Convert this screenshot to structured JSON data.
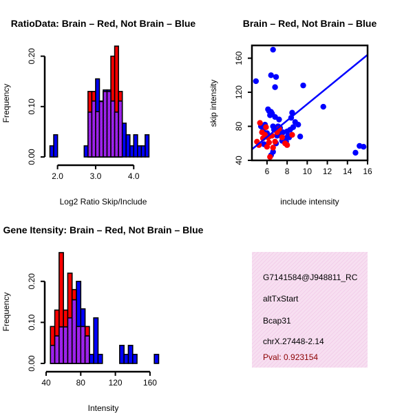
{
  "colors": {
    "red": "#ff0000",
    "blue": "#0000ff",
    "purple": "#a020f0",
    "info_bg": "#f5d3ec",
    "pval": "#8b0000"
  },
  "chart_data": [
    {
      "type": "bar",
      "title": "RatioData: Brain – Red, Not Brain – Blue",
      "xlabel": "Log2 Ratio Skip/Include",
      "ylabel": "Frequency",
      "xlim": [
        1.7,
        4.7
      ],
      "ylim": [
        0,
        0.22
      ],
      "xticks": [
        2.0,
        3.0,
        4.0
      ],
      "xtick_labels": [
        "2.0",
        "3.0",
        "4.0"
      ],
      "yticks": [
        0,
        0.1,
        0.2
      ],
      "ytick_labels": [
        "0.00",
        "0.10",
        "0.20"
      ],
      "bin_width": 0.1,
      "series": [
        {
          "name": "Brain",
          "color": "red",
          "bins": [
            {
              "x0": 2.8,
              "value": 0.13
            },
            {
              "x0": 2.9,
              "value": 0.13
            },
            {
              "x0": 3.0,
              "value": 0.09
            },
            {
              "x0": 3.1,
              "value": 0.11
            },
            {
              "x0": 3.2,
              "value": 0.13
            },
            {
              "x0": 3.3,
              "value": 0.13
            },
            {
              "x0": 3.4,
              "value": 0.2
            },
            {
              "x0": 3.5,
              "value": 0.22
            },
            {
              "x0": 3.6,
              "value": 0.13
            }
          ]
        },
        {
          "name": "Not Brain",
          "color": "blue",
          "bins": [
            {
              "x0": 1.8,
              "value": 0.022
            },
            {
              "x0": 1.9,
              "value": 0.044
            },
            {
              "x0": 2.7,
              "value": 0.022
            },
            {
              "x0": 2.8,
              "value": 0.089
            },
            {
              "x0": 2.9,
              "value": 0.111
            },
            {
              "x0": 3.0,
              "value": 0.155
            },
            {
              "x0": 3.1,
              "value": 0.111
            },
            {
              "x0": 3.2,
              "value": 0.133
            },
            {
              "x0": 3.3,
              "value": 0.133
            },
            {
              "x0": 3.4,
              "value": 0.111
            },
            {
              "x0": 3.5,
              "value": 0.089
            },
            {
              "x0": 3.6,
              "value": 0.111
            },
            {
              "x0": 3.7,
              "value": 0.067
            },
            {
              "x0": 3.8,
              "value": 0.044
            },
            {
              "x0": 3.9,
              "value": 0.022
            },
            {
              "x0": 4.0,
              "value": 0.044
            },
            {
              "x0": 4.1,
              "value": 0.022
            },
            {
              "x0": 4.2,
              "value": 0.022
            },
            {
              "x0": 4.3,
              "value": 0.044
            }
          ]
        }
      ]
    },
    {
      "type": "scatter",
      "title": "Brain – Red, Not Brain – Blue",
      "xlabel": "include intensity",
      "ylabel": "skip intensity",
      "xlim": [
        4.5,
        16
      ],
      "ylim": [
        40,
        175
      ],
      "xticks": [
        6,
        8,
        10,
        12,
        14,
        16
      ],
      "xtick_labels": [
        "6",
        "8",
        "10",
        "12",
        "14",
        "16"
      ],
      "yticks": [
        40,
        80,
        120,
        160
      ],
      "ytick_labels": [
        "40",
        "80",
        "120",
        "160"
      ],
      "fit_line": {
        "color": "blue",
        "x": [
          4.5,
          16
        ],
        "y": [
          53,
          164
        ]
      },
      "series": [
        {
          "name": "Brain",
          "color": "red",
          "points": [
            [
              5.0,
              62
            ],
            [
              5.2,
              58
            ],
            [
              5.3,
              84
            ],
            [
              5.5,
              73
            ],
            [
              5.6,
              66
            ],
            [
              5.8,
              70
            ],
            [
              5.9,
              79
            ],
            [
              6.0,
              56
            ],
            [
              6.1,
              67
            ],
            [
              6.2,
              61
            ],
            [
              6.3,
              44
            ],
            [
              6.5,
              69
            ],
            [
              6.6,
              55
            ],
            [
              6.8,
              62
            ],
            [
              7.0,
              73
            ],
            [
              7.2,
              77
            ],
            [
              7.5,
              67
            ],
            [
              7.8,
              60
            ],
            [
              8.0,
              58
            ],
            [
              8.5,
              70
            ]
          ]
        },
        {
          "name": "Not Brain",
          "color": "blue",
          "points": [
            [
              4.9,
              133
            ],
            [
              5.4,
              80
            ],
            [
              5.6,
              75
            ],
            [
              5.8,
              82
            ],
            [
              6.0,
              72
            ],
            [
              6.1,
              100
            ],
            [
              6.2,
              98
            ],
            [
              6.3,
              93
            ],
            [
              6.4,
              97
            ],
            [
              6.4,
              140
            ],
            [
              6.5,
              95
            ],
            [
              6.6,
              80
            ],
            [
              6.6,
              170
            ],
            [
              6.7,
              76
            ],
            [
              6.8,
              126
            ],
            [
              6.8,
              91
            ],
            [
              6.9,
              138
            ],
            [
              7.0,
              69
            ],
            [
              7.1,
              80
            ],
            [
              7.2,
              74
            ],
            [
              7.3,
              78
            ],
            [
              7.4,
              69
            ],
            [
              7.5,
              63
            ],
            [
              7.6,
              73
            ],
            [
              7.7,
              66
            ],
            [
              7.8,
              66
            ],
            [
              7.9,
              62
            ],
            [
              8.0,
              74
            ],
            [
              8.1,
              69
            ],
            [
              8.2,
              67
            ],
            [
              8.3,
              76
            ],
            [
              8.4,
              90
            ],
            [
              8.5,
              96
            ],
            [
              8.6,
              79
            ],
            [
              8.8,
              85
            ],
            [
              9.1,
              82
            ],
            [
              9.3,
              68
            ],
            [
              9.6,
              128
            ],
            [
              11.6,
              103
            ],
            [
              14.8,
              49
            ],
            [
              15.2,
              57
            ],
            [
              15.6,
              56
            ],
            [
              6.4,
              46
            ],
            [
              6.6,
              50
            ],
            [
              6.9,
              60
            ],
            [
              7.2,
              88
            ],
            [
              6.2,
              68
            ],
            [
              5.7,
              59
            ]
          ]
        }
      ]
    },
    {
      "type": "bar",
      "title": "Gene Itensity: Brain – Red, Not Brain – Blue",
      "xlabel": "Intensity",
      "ylabel": "Frequency",
      "xlim": [
        40,
        172
      ],
      "ylim": [
        0,
        0.27
      ],
      "xticks": [
        40,
        80,
        120,
        160
      ],
      "xtick_labels": [
        "40",
        "80",
        "120",
        "160"
      ],
      "yticks": [
        0,
        0.1,
        0.2
      ],
      "ytick_labels": [
        "0.00",
        "0.10",
        "0.20"
      ],
      "bin_width": 5,
      "series": [
        {
          "name": "Brain",
          "color": "red",
          "bins": [
            {
              "x0": 45,
              "value": 0.09
            },
            {
              "x0": 50,
              "value": 0.13
            },
            {
              "x0": 55,
              "value": 0.27
            },
            {
              "x0": 60,
              "value": 0.13
            },
            {
              "x0": 65,
              "value": 0.22
            },
            {
              "x0": 70,
              "value": 0.18
            },
            {
              "x0": 75,
              "value": 0.09
            },
            {
              "x0": 80,
              "value": 0.09
            },
            {
              "x0": 85,
              "value": 0.09
            }
          ]
        },
        {
          "name": "Not Brain",
          "color": "blue",
          "bins": [
            {
              "x0": 45,
              "value": 0.044
            },
            {
              "x0": 50,
              "value": 0.067
            },
            {
              "x0": 55,
              "value": 0.089
            },
            {
              "x0": 60,
              "value": 0.089
            },
            {
              "x0": 65,
              "value": 0.111
            },
            {
              "x0": 70,
              "value": 0.155
            },
            {
              "x0": 75,
              "value": 0.2
            },
            {
              "x0": 80,
              "value": 0.133
            },
            {
              "x0": 85,
              "value": 0.067
            },
            {
              "x0": 90,
              "value": 0.022
            },
            {
              "x0": 95,
              "value": 0.111
            },
            {
              "x0": 100,
              "value": 0.022
            },
            {
              "x0": 125,
              "value": 0.044
            },
            {
              "x0": 130,
              "value": 0.022
            },
            {
              "x0": 135,
              "value": 0.044
            },
            {
              "x0": 140,
              "value": 0.022
            },
            {
              "x0": 165,
              "value": 0.022
            }
          ]
        }
      ]
    }
  ],
  "info_box": {
    "probe_id": "G7141584@J948811_RC",
    "event_type": "altTxStart",
    "gene": "Bcap31",
    "location": "chrX.27448-2.14",
    "pval": "Pval: 0.923154"
  }
}
